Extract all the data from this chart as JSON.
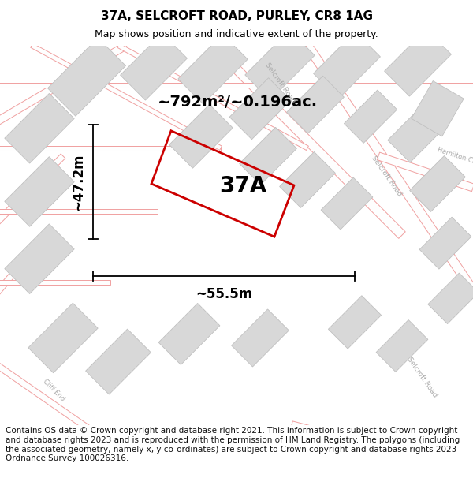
{
  "title": "37A, SELCROFT ROAD, PURLEY, CR8 1AG",
  "subtitle": "Map shows position and indicative extent of the property.",
  "area_label": "~792m²/~0.196ac.",
  "width_label": "~55.5m",
  "height_label": "~47.2m",
  "property_label": "37A",
  "map_bg": "#f8f8f8",
  "road_color": "#f0a0a0",
  "building_color": "#d8d8d8",
  "building_edge": "#c0c0c0",
  "property_stroke": "#cc0000",
  "footer_text": "Contains OS data © Crown copyright and database right 2021. This information is subject to Crown copyright and database rights 2023 and is reproduced with the permission of HM Land Registry. The polygons (including the associated geometry, namely x, y co-ordinates) are subject to Crown copyright and database rights 2023 Ordnance Survey 100026316.",
  "title_fontsize": 11,
  "subtitle_fontsize": 9,
  "area_fontsize": 14,
  "dim_label_fontsize": 12,
  "property_label_fontsize": 20,
  "footer_fontsize": 7.5,
  "road_label_color": "#aaaaaa",
  "road_label_size": 6.5
}
